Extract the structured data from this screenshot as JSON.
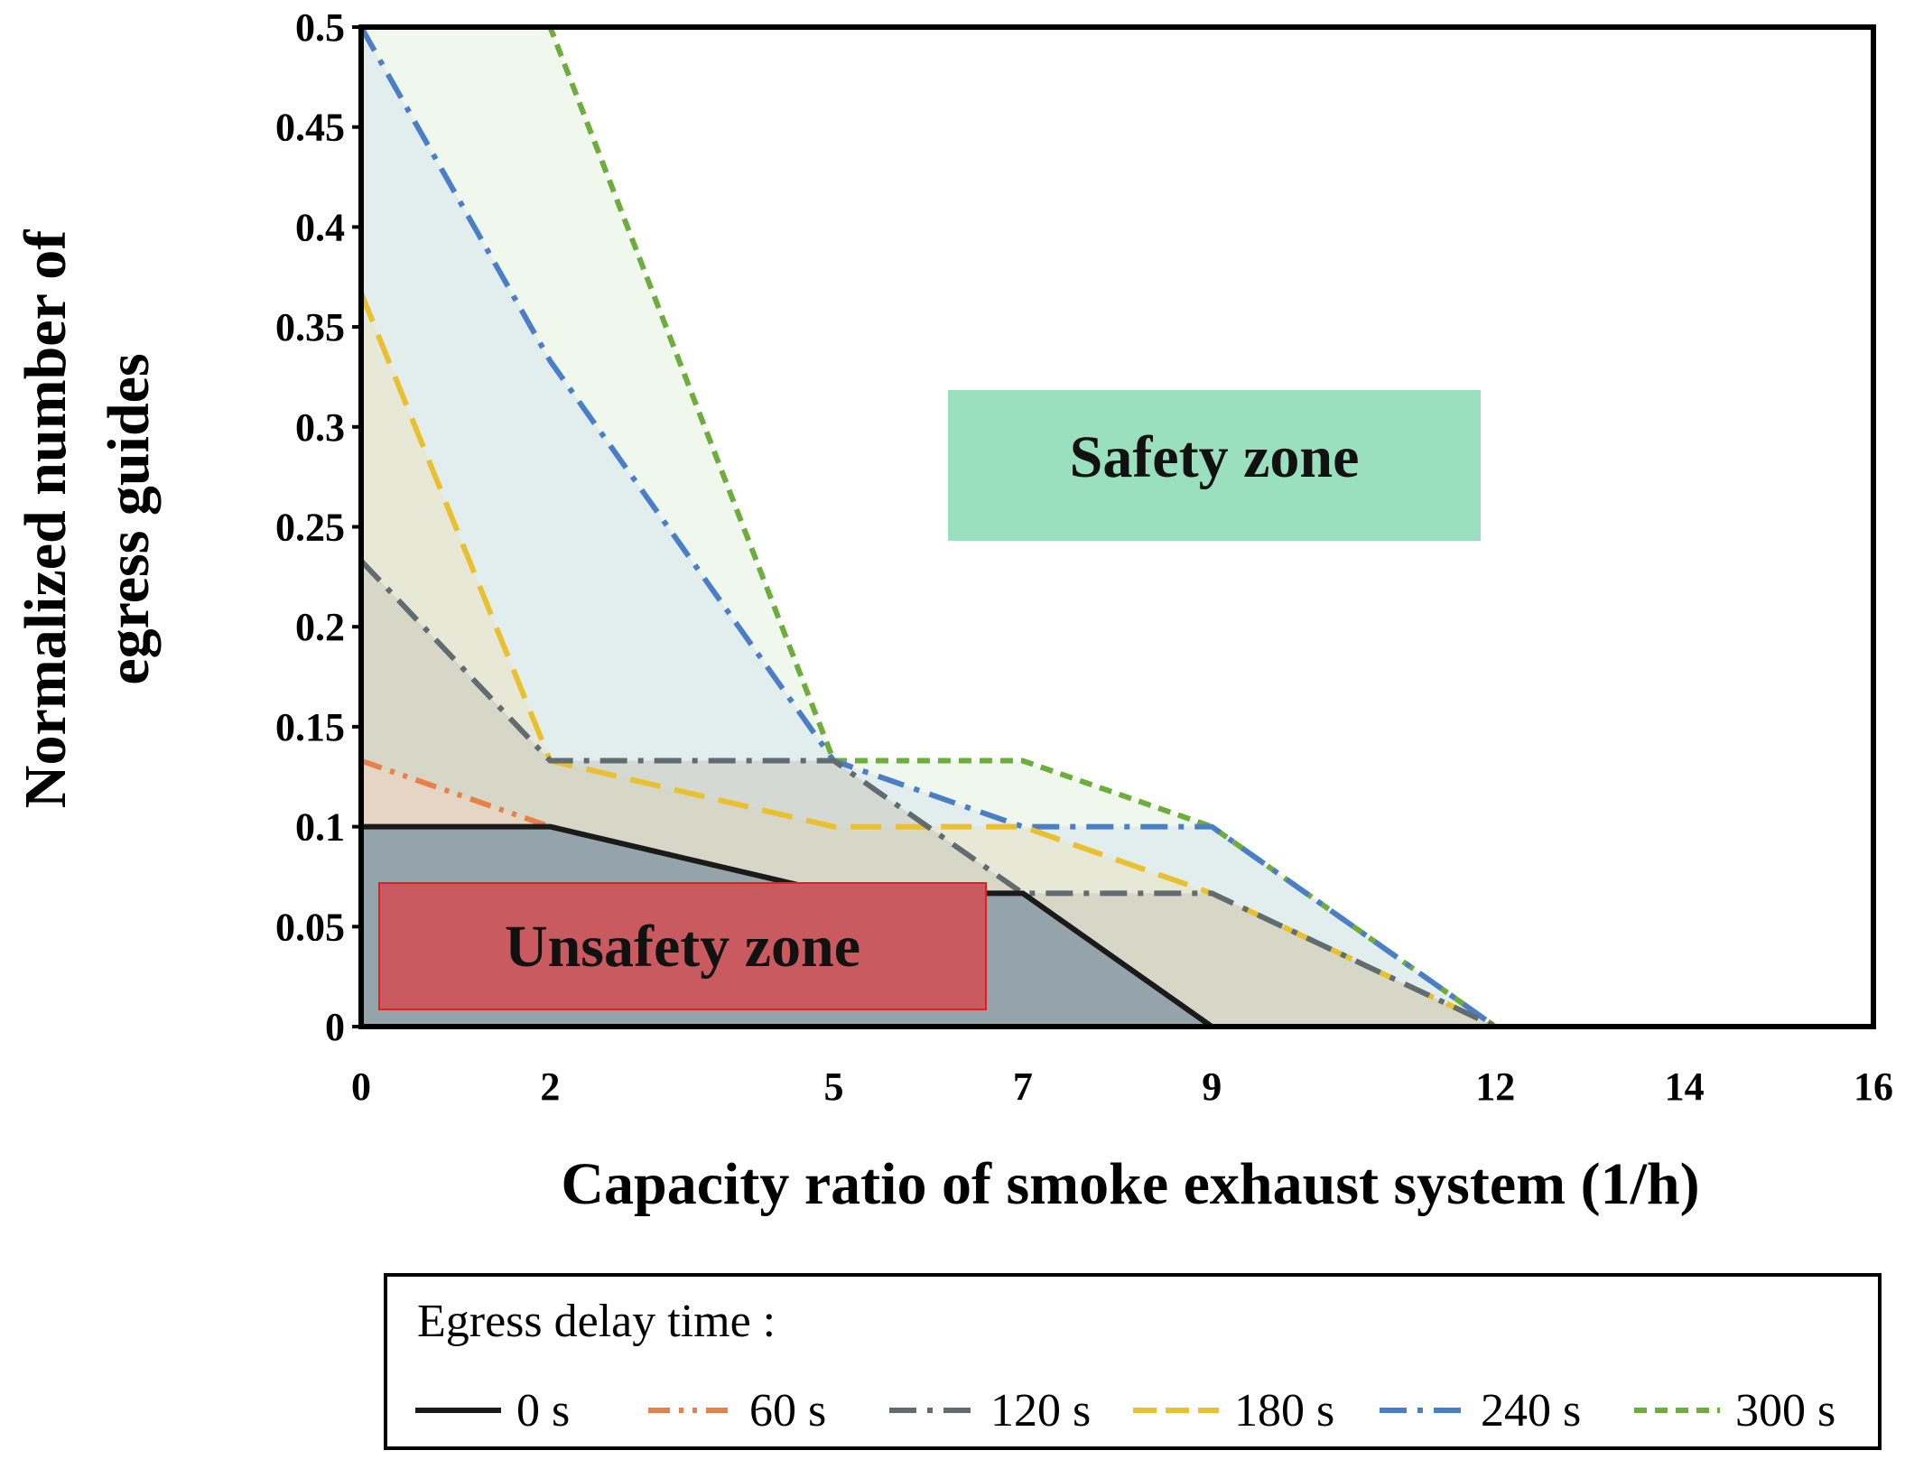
{
  "chart_data": {
    "type": "area",
    "xlabel": "Capacity ratio of smoke exhaust system (1/h)",
    "ylabel_lines": [
      "Normalized number of",
      "egress guides"
    ],
    "xlim": [
      0,
      16
    ],
    "ylim": [
      0,
      0.5
    ],
    "x_ticks": [
      0,
      2,
      5,
      7,
      9,
      12,
      14,
      16
    ],
    "x_tick_labels": [
      "0",
      "2",
      "5",
      "7",
      "9",
      "12",
      "14",
      "16"
    ],
    "y_ticks": [
      0,
      0.05,
      0.1,
      0.15,
      0.2,
      0.25,
      0.3,
      0.35,
      0.4,
      0.45,
      0.5
    ],
    "y_tick_labels": [
      "0",
      "0.05",
      "0.1",
      "0.15",
      "0.2",
      "0.25",
      "0.3",
      "0.35",
      "0.4",
      "0.45",
      "0.5"
    ],
    "x_positions": [
      0,
      2,
      5,
      7,
      9,
      12,
      14,
      16
    ],
    "series": [
      {
        "name": "0 s",
        "color": "#1a1a1a",
        "fill": "#8ea0a8",
        "fill_opacity": 0.92,
        "dash": "solid",
        "values": [
          0.1,
          0.1,
          0.0667,
          0.0667,
          0,
          0,
          0,
          0
        ]
      },
      {
        "name": "60 s",
        "color": "#e8804a",
        "fill": "#f4d3bf",
        "fill_opacity": 0.55,
        "dash": "dashdotdot",
        "values": [
          0.133,
          0.1,
          0.0667,
          0.0667,
          0,
          0,
          0,
          0
        ]
      },
      {
        "name": "120 s",
        "color": "#606c70",
        "fill": "#c9c9bd",
        "fill_opacity": 0.55,
        "dash": "dashdot",
        "values": [
          0.233,
          0.133,
          0.133,
          0.0667,
          0.0667,
          0,
          0,
          0
        ]
      },
      {
        "name": "180 s",
        "color": "#e8c030",
        "fill": "#ece4c2",
        "fill_opacity": 0.55,
        "dash": "dash",
        "values": [
          0.367,
          0.133,
          0.1,
          0.1,
          0.0667,
          0,
          0,
          0
        ]
      },
      {
        "name": "240 s",
        "color": "#4a7fc8",
        "fill": "#d8e6ee",
        "fill_opacity": 0.6,
        "dash": "dashdot",
        "values": [
          0.5,
          0.333,
          0.133,
          0.1,
          0.1,
          0,
          0,
          0
        ]
      },
      {
        "name": "300 s",
        "color": "#6cad3c",
        "fill": "#eaf4e4",
        "fill_opacity": 0.7,
        "dash": "shortdash",
        "values": [
          0.5,
          0.5,
          0.133,
          0.133,
          0.1,
          0,
          0,
          0
        ]
      }
    ],
    "annotations": {
      "safety_zone": {
        "text": "Safety zone",
        "color": "#9adfbe"
      },
      "unsafety_zone": {
        "text": "Unsafety zone",
        "color": "#c85a60",
        "border": "#e02020"
      }
    },
    "legend": {
      "title": "Egress delay time :",
      "position": "bottom"
    },
    "grid": false
  }
}
